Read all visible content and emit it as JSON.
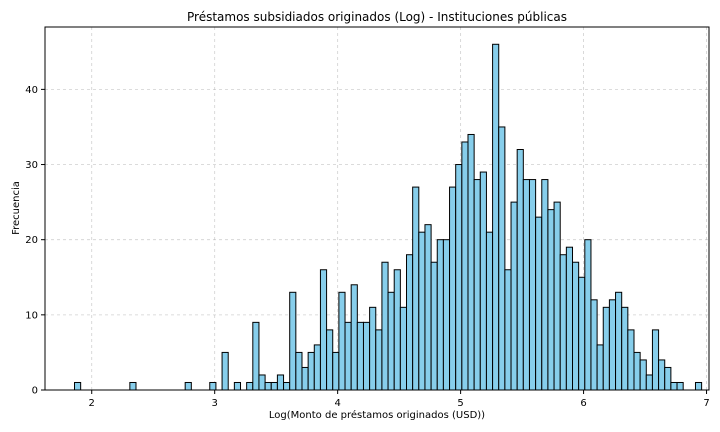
{
  "chart_data": {
    "type": "bar",
    "title": "Préstamos subsidiados originados (Log) - Instituciones públicas",
    "xlabel": "Log(Monto de préstamos originados (USD))",
    "ylabel": "Frecuencia",
    "xlim": [
      1.62,
      7.02
    ],
    "ylim": [
      0,
      48.3
    ],
    "xticks": [
      2,
      3,
      4,
      5,
      6,
      7
    ],
    "yticks": [
      0,
      10,
      20,
      30,
      40
    ],
    "grid": true,
    "bar_color": "#87ceeb",
    "edge_color": "#000000",
    "bin_start": 1.86,
    "bin_width": 0.05,
    "values": [
      1,
      0,
      0,
      0,
      0,
      0,
      0,
      0,
      0,
      1,
      0,
      0,
      0,
      0,
      0,
      0,
      0,
      0,
      1,
      0,
      0,
      0,
      1,
      0,
      5,
      0,
      1,
      0,
      1,
      9,
      2,
      1,
      1,
      2,
      1,
      13,
      5,
      3,
      5,
      6,
      16,
      8,
      5,
      13,
      9,
      14,
      9,
      9,
      11,
      8,
      17,
      13,
      16,
      11,
      18,
      27,
      21,
      22,
      17,
      20,
      20,
      27,
      30,
      33,
      34,
      28,
      29,
      21,
      46,
      35,
      16,
      25,
      32,
      28,
      28,
      23,
      28,
      24,
      25,
      18,
      19,
      17,
      15,
      20,
      12,
      6,
      11,
      12,
      13,
      11,
      8,
      5,
      4,
      2,
      8,
      4,
      3,
      1,
      1,
      0,
      0,
      1
    ]
  }
}
